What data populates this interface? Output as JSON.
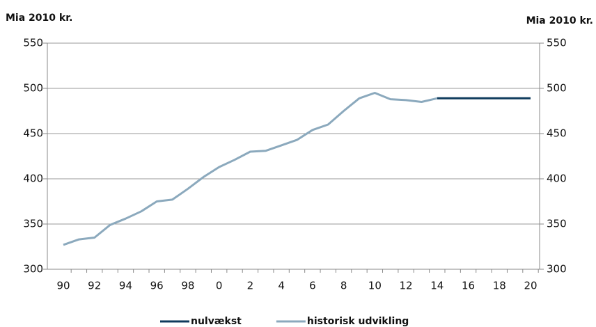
{
  "chart_data": {
    "type": "line",
    "ylabel": "Mia 2010 kr.",
    "y2label": "Mia 2010 kr.",
    "categories": [
      "90",
      null,
      "92",
      null,
      "94",
      null,
      "96",
      null,
      "98",
      null,
      "0",
      null,
      "2",
      null,
      "4",
      null,
      "6",
      null,
      "8",
      null,
      "10",
      null,
      "12",
      null,
      "14",
      null,
      "16",
      null,
      "18",
      null,
      "20"
    ],
    "series": [
      {
        "name": "nulvækst",
        "color": "#0e3a5c",
        "values": [
          null,
          null,
          null,
          null,
          null,
          null,
          null,
          null,
          null,
          null,
          null,
          null,
          null,
          null,
          null,
          null,
          null,
          null,
          null,
          null,
          null,
          null,
          null,
          null,
          489,
          489,
          489,
          489,
          489,
          489,
          489
        ]
      },
      {
        "name": "historisk udvikling",
        "color": "#8ba9bd",
        "values": [
          327,
          333,
          335,
          349,
          356,
          364,
          375,
          377,
          389,
          402,
          413,
          421,
          430,
          431,
          437,
          443,
          454,
          460,
          475,
          489,
          495,
          488,
          487,
          485,
          489,
          null,
          null,
          null,
          null,
          null,
          null
        ]
      }
    ],
    "ylim": [
      300,
      550
    ],
    "yticks": [
      300,
      350,
      400,
      450,
      500,
      550
    ],
    "y2lim": [
      300,
      550
    ],
    "y2ticks": [
      300,
      350,
      400,
      450,
      500,
      550
    ],
    "grid": true,
    "legend": "bottom"
  }
}
